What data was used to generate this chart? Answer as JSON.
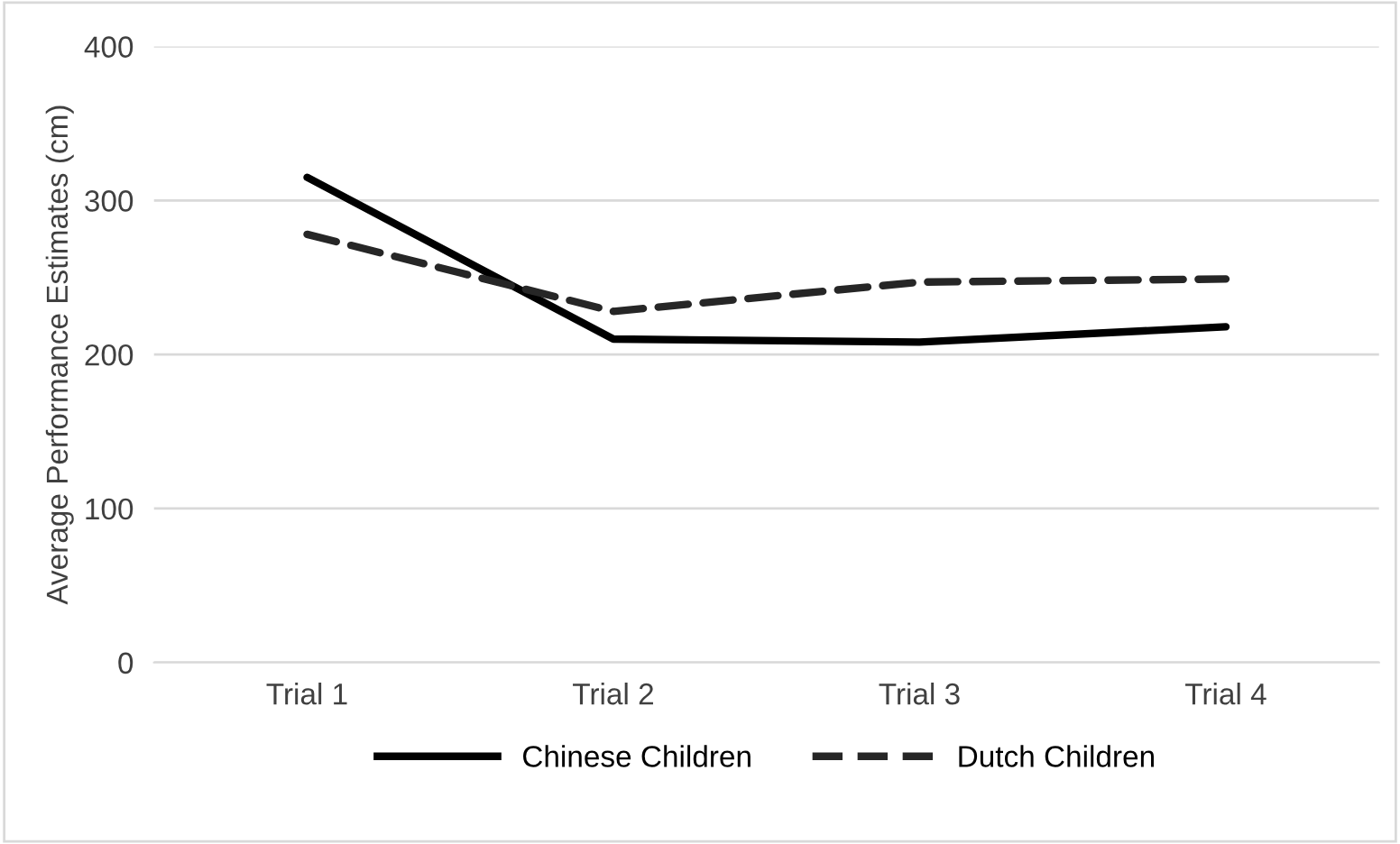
{
  "chart_data": {
    "type": "line",
    "ylabel": "Average Performance Estimates (cm)",
    "categories": [
      "Trial 1",
      "Trial 2",
      "Trial 3",
      "Trial 4"
    ],
    "series": [
      {
        "name": "Chinese Children",
        "color": "#000000",
        "line_style": "solid",
        "values": [
          315,
          210,
          208,
          218
        ]
      },
      {
        "name": "Dutch Children",
        "color": "#262626",
        "line_style": "dashed",
        "values": [
          278,
          228,
          247,
          249
        ]
      }
    ],
    "ylim": [
      0,
      400
    ],
    "yticks": [
      0,
      100,
      200,
      300,
      400
    ],
    "grid": "y",
    "legend": "bottom",
    "marker": "none"
  }
}
